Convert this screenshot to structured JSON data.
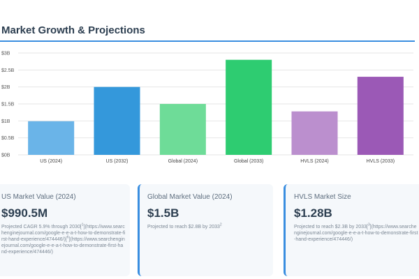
{
  "header": {
    "title": "Market Growth & Projections"
  },
  "chart_data": {
    "type": "bar",
    "categories": [
      "US (2024)",
      "US (2032)",
      "Global (2024)",
      "Global (2033)",
      "HVLS (2024)",
      "HVLS (2033)"
    ],
    "values": [
      0.99,
      2.0,
      1.5,
      2.8,
      1.28,
      2.3
    ],
    "colors": [
      "#6ab4e8",
      "#3498db",
      "#6edc98",
      "#2ecc71",
      "#bb8fce",
      "#9b59b6"
    ],
    "yticks": [
      "$0B",
      "$0.5B",
      "$1B",
      "$1.5B",
      "$2B",
      "$2.5B",
      "$3B"
    ],
    "ylim": [
      0,
      3
    ],
    "grid": true,
    "title": "",
    "xlabel": "",
    "ylabel": ""
  },
  "cards": [
    {
      "title": "US Market Value (2024)",
      "value": "$990.5M",
      "note_text": "Projected CAGR 5.9% through 2030[",
      "note_sup": "1",
      "note_tail": "](https://www.searchenginejournal.com/google-e-e-a-t-how-to-demonstrate-first-hand-experience/474446/)[",
      "note_sup2": "6",
      "note_tail2": "](https://www.searchenginejournal.com/google-e-e-a-t-how-to-demonstrate-first-hand-experience/474446/)"
    },
    {
      "title": "Global Market Value (2024)",
      "value": "$1.5B",
      "note_text": "Projected to reach $2.8B by 2033",
      "note_sup": "2"
    },
    {
      "title": "HVLS Market Size",
      "value": "$1.28B",
      "note_text": "Projected to reach $2.3B by 2033[",
      "note_sup": "3",
      "note_tail": "](https://www.searchenginejournal.com/google-e-e-a-t-how-to-demonstrate-first-hand-experience/474446/)"
    }
  ]
}
